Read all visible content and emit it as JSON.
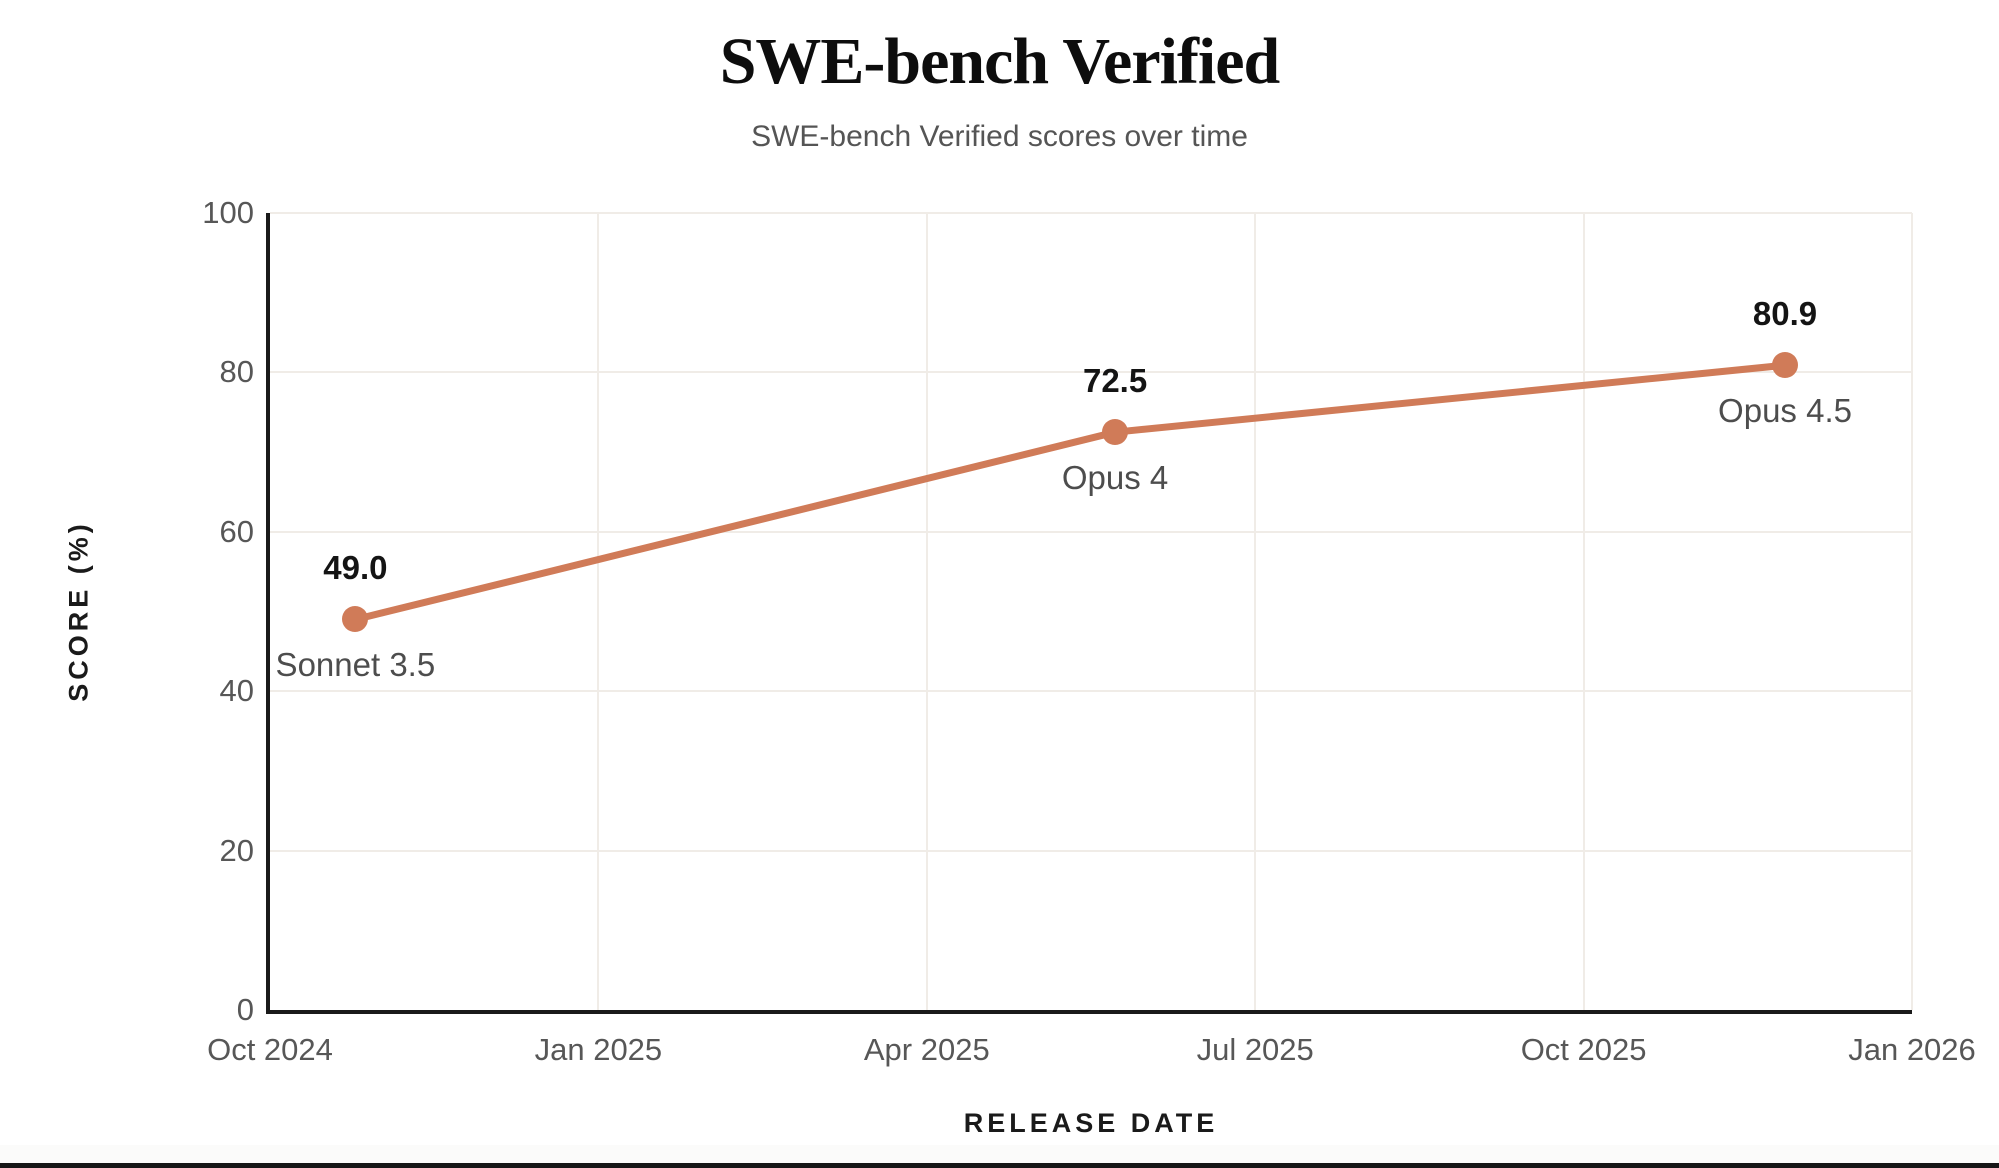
{
  "header": {
    "title": "SWE-bench Verified",
    "subtitle": "SWE-bench Verified scores over time"
  },
  "chart_data": {
    "type": "line",
    "title": "SWE-bench Verified",
    "subtitle": "SWE-bench Verified scores over time",
    "xlabel": "RELEASE DATE",
    "ylabel": "SCORE (%)",
    "ylim": [
      0,
      100
    ],
    "yticks": [
      0,
      20,
      40,
      60,
      80,
      100
    ],
    "xticks": [
      "Oct 2024",
      "Jan 2025",
      "Apr 2025",
      "Jul 2025",
      "Oct 2025",
      "Jan 2026"
    ],
    "x_axis_span_months": 15,
    "grid": true,
    "legend": "none",
    "series": [
      {
        "name": "SWE-bench Verified score",
        "color": "#d07b58",
        "points": [
          {
            "model": "Sonnet 3.5",
            "score": 49.0,
            "score_label": "49.0",
            "x_months_from_start": 0.78
          },
          {
            "model": "Opus 4",
            "score": 72.5,
            "score_label": "72.5",
            "x_months_from_start": 7.72
          },
          {
            "model": "Opus 4.5",
            "score": 80.9,
            "score_label": "80.9",
            "x_months_from_start": 13.84
          }
        ]
      }
    ],
    "colors": {
      "accent": "#d07b58",
      "grid": "#f0ece7",
      "axis": "#1a1a1a",
      "tick_text": "#575757",
      "value_text": "#141414",
      "model_text": "#4d4d4d"
    }
  }
}
